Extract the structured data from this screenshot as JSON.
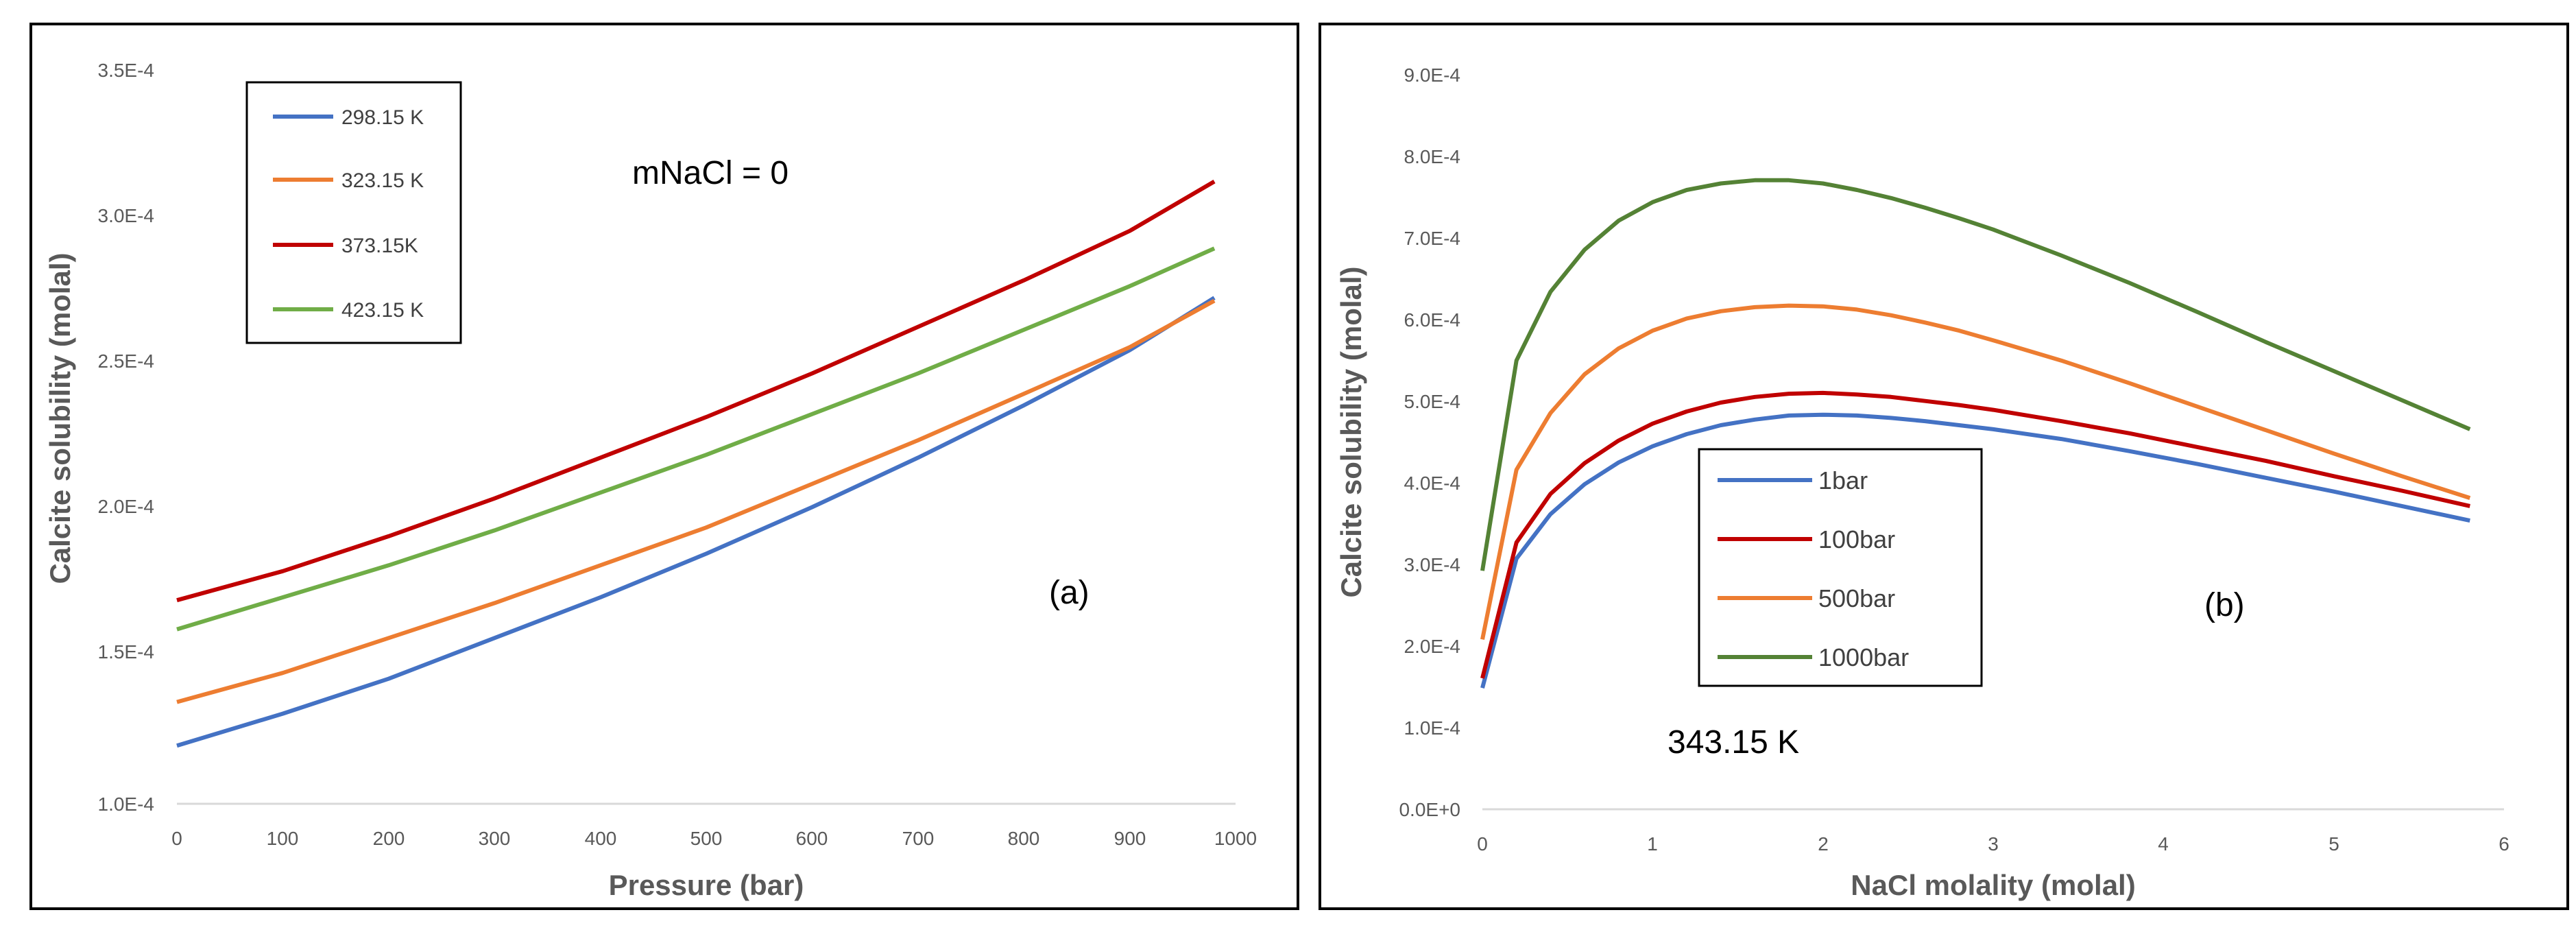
{
  "chart_data": [
    {
      "type": "line",
      "panel": "a",
      "panel_label": "(a)",
      "annotation": "mNaCl = 0",
      "xlabel": "Pressure (bar)",
      "ylabel": "Calcite solubility (molal)",
      "xlim": [
        0,
        1000
      ],
      "ylim": [
        0.0001,
        0.00035
      ],
      "x_ticks": [
        0,
        100,
        200,
        300,
        400,
        500,
        600,
        700,
        800,
        900,
        1000
      ],
      "x_tick_labels": [
        "0",
        "100",
        "200",
        "300",
        "400",
        "500",
        "600",
        "700",
        "800",
        "900",
        "1000"
      ],
      "y_ticks": [
        0.0001,
        0.00015,
        0.0002,
        0.00025,
        0.0003,
        0.00035
      ],
      "y_tick_labels": [
        "1.0E-4",
        "1.5E-4",
        "2.0E-4",
        "2.5E-4",
        "3.0E-4",
        "3.5E-4"
      ],
      "grid": false,
      "legend_position": "top-left",
      "x": [
        0,
        100,
        200,
        300,
        400,
        500,
        600,
        700,
        800,
        900,
        980
      ],
      "series": [
        {
          "name": "298.15 K",
          "color": "#4472C4",
          "values": [
            0.00012,
            0.000131,
            0.000143,
            0.000157,
            0.000171,
            0.000186,
            0.000202,
            0.000219,
            0.000237,
            0.000256,
            0.000274
          ]
        },
        {
          "name": "323.15 K",
          "color": "#ED7D31",
          "values": [
            0.000135,
            0.000145,
            0.000157,
            0.000169,
            0.000182,
            0.000195,
            0.00021,
            0.000225,
            0.000241,
            0.000257,
            0.000273
          ]
        },
        {
          "name": "373.15K",
          "color": "#C00000",
          "values": [
            0.00017,
            0.00018,
            0.000192,
            0.000205,
            0.000219,
            0.000233,
            0.000248,
            0.000264,
            0.00028,
            0.000297,
            0.000314
          ]
        },
        {
          "name": "423.15 K",
          "color": "#70AD47",
          "values": [
            0.00016,
            0.000171,
            0.000182,
            0.000194,
            0.000207,
            0.00022,
            0.000234,
            0.000248,
            0.000263,
            0.000278,
            0.000291
          ]
        }
      ]
    },
    {
      "type": "line",
      "panel": "b",
      "panel_label": "(b)",
      "annotation": "343.15 K",
      "xlabel": "NaCl molality (molal)",
      "ylabel": "Calcite solubility (molal)",
      "xlim": [
        0,
        6
      ],
      "ylim": [
        0,
        0.0009
      ],
      "x_ticks": [
        0,
        1,
        2,
        3,
        4,
        5,
        6
      ],
      "x_tick_labels": [
        "0",
        "1",
        "2",
        "3",
        "4",
        "5",
        "6"
      ],
      "y_ticks": [
        0,
        0.0001,
        0.0002,
        0.0003,
        0.0004,
        0.0005,
        0.0006,
        0.0007,
        0.0008,
        0.0009
      ],
      "y_tick_labels": [
        "0.0E+0",
        "1.0E-4",
        "2.0E-4",
        "3.0E-4",
        "4.0E-4",
        "5.0E-4",
        "6.0E-4",
        "7.0E-4",
        "8.0E-4",
        "9.0E-4"
      ],
      "grid": false,
      "legend_position": "bottom-left",
      "x": [
        0,
        0.2,
        0.4,
        0.6,
        0.8,
        1.0,
        1.2,
        1.4,
        1.6,
        1.8,
        2.0,
        2.2,
        2.4,
        2.6,
        2.8,
        3.0,
        3.4,
        3.8,
        4.2,
        4.6,
        5.0,
        5.4,
        5.8
      ],
      "series": [
        {
          "name": "1bar",
          "color": "#4472C4",
          "values": [
            0.00015,
            0.00031,
            0.000365,
            0.000402,
            0.000429,
            0.000449,
            0.000464,
            0.000475,
            0.000482,
            0.000487,
            0.000488,
            0.000487,
            0.000484,
            0.00048,
            0.000475,
            0.00047,
            0.000458,
            0.000443,
            0.000427,
            0.00041,
            0.000393,
            0.000375,
            0.000357
          ]
        },
        {
          "name": "100bar",
          "color": "#C00000",
          "values": [
            0.000162,
            0.00033,
            0.00039,
            0.000428,
            0.000456,
            0.000477,
            0.000492,
            0.000503,
            0.00051,
            0.000514,
            0.000515,
            0.000513,
            0.00051,
            0.000505,
            0.0005,
            0.000494,
            0.00048,
            0.000465,
            0.000448,
            0.000431,
            0.000412,
            0.000394,
            0.000375
          ]
        },
        {
          "name": "500bar",
          "color": "#ED7D31",
          "values": [
            0.00021,
            0.00042,
            0.00049,
            0.000538,
            0.00057,
            0.000592,
            0.000607,
            0.000616,
            0.000621,
            0.000623,
            0.000622,
            0.000618,
            0.000611,
            0.000602,
            0.000592,
            0.00058,
            0.000555,
            0.000527,
            0.000498,
            0.000469,
            0.00044,
            0.000412,
            0.000385
          ]
        },
        {
          "name": "1000bar",
          "color": "#548235",
          "values": [
            0.000295,
            0.000555,
            0.00064,
            0.000692,
            0.000728,
            0.000751,
            0.000766,
            0.000774,
            0.000778,
            0.000778,
            0.000774,
            0.000766,
            0.000756,
            0.000744,
            0.000731,
            0.000717,
            0.000685,
            0.000651,
            0.000615,
            0.000578,
            0.000542,
            0.000506,
            0.00047
          ]
        }
      ]
    }
  ]
}
